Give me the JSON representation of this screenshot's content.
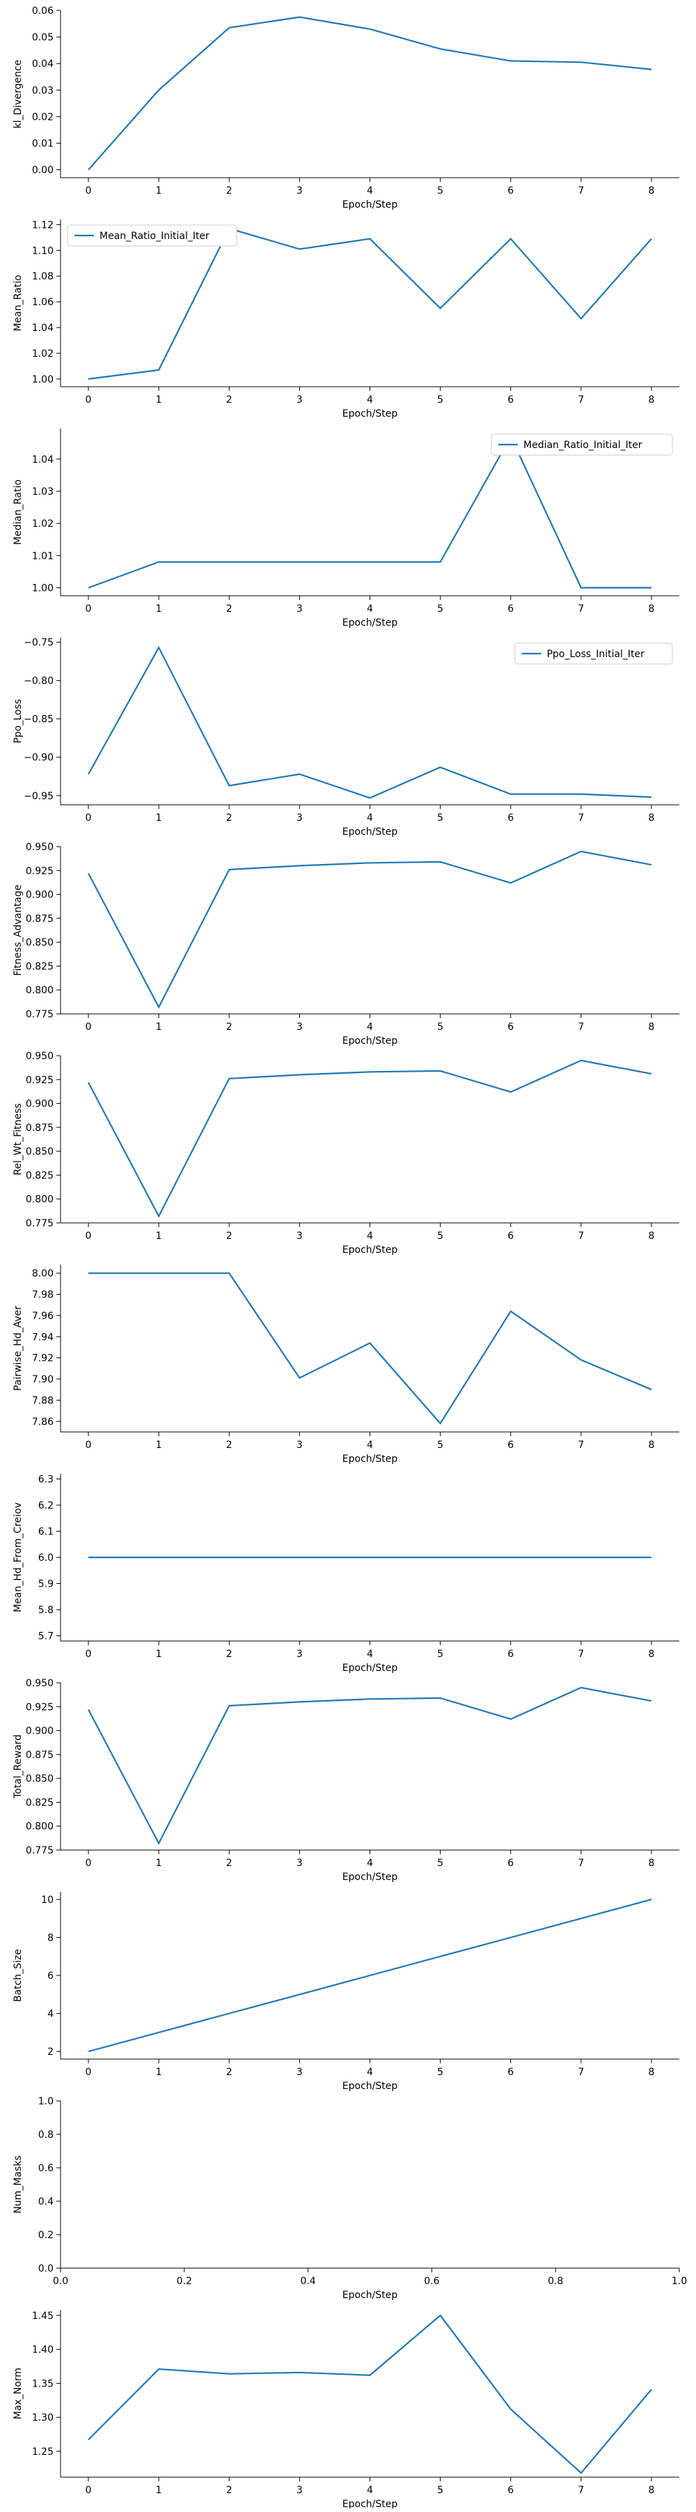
{
  "chart_data": [
    {
      "type": "line",
      "xlabel": "Epoch/Step",
      "ylabel": "kl_Divergence",
      "x": [
        0,
        1,
        2,
        3,
        4,
        5,
        6,
        7,
        8
      ],
      "series": [
        {
          "values": [
            0.0,
            0.03,
            0.0535,
            0.0575,
            0.053,
            0.0455,
            0.041,
            0.0405,
            0.0378
          ]
        }
      ],
      "ylim": [
        -0.003,
        0.06
      ],
      "yticks": [
        0.0,
        0.01,
        0.02,
        0.03,
        0.04,
        0.05,
        0.06
      ],
      "ytick_labels": [
        "0.00",
        "0.01",
        "0.02",
        "0.03",
        "0.04",
        "0.05",
        "0.06"
      ],
      "xticks": [
        0,
        1,
        2,
        3,
        4,
        5,
        6,
        7,
        8
      ],
      "xtick_labels": [
        "0",
        "1",
        "2",
        "3",
        "4",
        "5",
        "6",
        "7",
        "8"
      ],
      "legend": null
    },
    {
      "type": "line",
      "xlabel": "Epoch/Step",
      "ylabel": "Mean_Ratio",
      "x": [
        0,
        1,
        2,
        3,
        4,
        5,
        6,
        7,
        8
      ],
      "series": [
        {
          "name": "Mean_Ratio_Initial_Iter",
          "values": [
            1.0,
            1.007,
            1.117,
            1.101,
            1.109,
            1.055,
            1.109,
            1.047,
            1.109
          ]
        }
      ],
      "ylim": [
        0.994,
        1.124
      ],
      "yticks": [
        1.0,
        1.02,
        1.04,
        1.06,
        1.08,
        1.1,
        1.12
      ],
      "ytick_labels": [
        "1.00",
        "1.02",
        "1.04",
        "1.06",
        "1.08",
        "1.10",
        "1.12"
      ],
      "xticks": [
        0,
        1,
        2,
        3,
        4,
        5,
        6,
        7,
        8
      ],
      "xtick_labels": [
        "0",
        "1",
        "2",
        "3",
        "4",
        "5",
        "6",
        "7",
        "8"
      ],
      "legend": "upper-left"
    },
    {
      "type": "line",
      "xlabel": "Epoch/Step",
      "ylabel": "Median_Ratio",
      "x": [
        0,
        1,
        2,
        3,
        4,
        5,
        6,
        7,
        8
      ],
      "series": [
        {
          "name": "Median_Ratio_Initial_Iter",
          "values": [
            1.0,
            1.008,
            1.008,
            1.008,
            1.008,
            1.008,
            1.047,
            1.0,
            1.0
          ]
        }
      ],
      "ylim": [
        0.9975,
        1.0495
      ],
      "yticks": [
        1.0,
        1.01,
        1.02,
        1.03,
        1.04
      ],
      "ytick_labels": [
        "1.00",
        "1.01",
        "1.02",
        "1.03",
        "1.04"
      ],
      "xticks": [
        0,
        1,
        2,
        3,
        4,
        5,
        6,
        7,
        8
      ],
      "xtick_labels": [
        "0",
        "1",
        "2",
        "3",
        "4",
        "5",
        "6",
        "7",
        "8"
      ],
      "legend": "upper-right"
    },
    {
      "type": "line",
      "xlabel": "Epoch/Step",
      "ylabel": "Ppo_Loss",
      "x": [
        0,
        1,
        2,
        3,
        4,
        5,
        6,
        7,
        8
      ],
      "series": [
        {
          "name": "Ppo_Loss_Initial_Iter",
          "values": [
            -0.922,
            -0.757,
            -0.937,
            -0.922,
            -0.953,
            -0.913,
            -0.948,
            -0.948,
            -0.952
          ]
        }
      ],
      "ylim": [
        -0.962,
        -0.744
      ],
      "yticks": [
        -0.95,
        -0.9,
        -0.85,
        -0.8,
        -0.75
      ],
      "ytick_labels": [
        "−0.95",
        "−0.90",
        "−0.85",
        "−0.80",
        "−0.75"
      ],
      "xticks": [
        0,
        1,
        2,
        3,
        4,
        5,
        6,
        7,
        8
      ],
      "xtick_labels": [
        "0",
        "1",
        "2",
        "3",
        "4",
        "5",
        "6",
        "7",
        "8"
      ],
      "legend": "upper-right"
    },
    {
      "type": "line",
      "xlabel": "Epoch/Step",
      "ylabel": "Fitness_Advantage",
      "x": [
        0,
        1,
        2,
        3,
        4,
        5,
        6,
        7,
        8
      ],
      "series": [
        {
          "values": [
            0.922,
            0.782,
            0.926,
            0.93,
            0.933,
            0.934,
            0.912,
            0.945,
            0.931
          ]
        }
      ],
      "ylim": [
        0.775,
        0.95
      ],
      "yticks": [
        0.775,
        0.8,
        0.825,
        0.85,
        0.875,
        0.9,
        0.925,
        0.95
      ],
      "ytick_labels": [
        "0.775",
        "0.800",
        "0.825",
        "0.850",
        "0.875",
        "0.900",
        "0.925",
        "0.950"
      ],
      "xticks": [
        0,
        1,
        2,
        3,
        4,
        5,
        6,
        7,
        8
      ],
      "xtick_labels": [
        "0",
        "1",
        "2",
        "3",
        "4",
        "5",
        "6",
        "7",
        "8"
      ],
      "legend": null
    },
    {
      "type": "line",
      "xlabel": "Epoch/Step",
      "ylabel": "Rel_Wt_Fitness",
      "x": [
        0,
        1,
        2,
        3,
        4,
        5,
        6,
        7,
        8
      ],
      "series": [
        {
          "values": [
            0.922,
            0.782,
            0.926,
            0.93,
            0.933,
            0.934,
            0.912,
            0.945,
            0.931
          ]
        }
      ],
      "ylim": [
        0.775,
        0.95
      ],
      "yticks": [
        0.775,
        0.8,
        0.825,
        0.85,
        0.875,
        0.9,
        0.925,
        0.95
      ],
      "ytick_labels": [
        "0.775",
        "0.800",
        "0.825",
        "0.850",
        "0.875",
        "0.900",
        "0.925",
        "0.950"
      ],
      "xticks": [
        0,
        1,
        2,
        3,
        4,
        5,
        6,
        7,
        8
      ],
      "xtick_labels": [
        "0",
        "1",
        "2",
        "3",
        "4",
        "5",
        "6",
        "7",
        "8"
      ],
      "legend": null
    },
    {
      "type": "line",
      "xlabel": "Epoch/Step",
      "ylabel": "Pairwise_Hd_Aver",
      "x": [
        0,
        1,
        2,
        3,
        4,
        5,
        6,
        7,
        8
      ],
      "series": [
        {
          "values": [
            8.0,
            8.0,
            8.0,
            7.901,
            7.934,
            7.858,
            7.964,
            7.918,
            7.89
          ]
        }
      ],
      "ylim": [
        7.85,
        8.008
      ],
      "yticks": [
        7.86,
        7.88,
        7.9,
        7.92,
        7.94,
        7.96,
        7.98,
        8.0
      ],
      "ytick_labels": [
        "7.86",
        "7.88",
        "7.90",
        "7.92",
        "7.94",
        "7.96",
        "7.98",
        "8.00"
      ],
      "xticks": [
        0,
        1,
        2,
        3,
        4,
        5,
        6,
        7,
        8
      ],
      "xtick_labels": [
        "0",
        "1",
        "2",
        "3",
        "4",
        "5",
        "6",
        "7",
        "8"
      ],
      "legend": null
    },
    {
      "type": "line",
      "xlabel": "Epoch/Step",
      "ylabel": "Mean_Hd_From_Creiov",
      "x": [
        0,
        1,
        2,
        3,
        4,
        5,
        6,
        7,
        8
      ],
      "series": [
        {
          "values": [
            6.0,
            6.0,
            6.0,
            6.0,
            6.0,
            6.0,
            6.0,
            6.0,
            6.0
          ]
        }
      ],
      "ylim": [
        5.68,
        6.32
      ],
      "yticks": [
        5.7,
        5.8,
        5.9,
        6.0,
        6.1,
        6.2,
        6.3
      ],
      "ytick_labels": [
        "5.7",
        "5.8",
        "5.9",
        "6.0",
        "6.1",
        "6.2",
        "6.3"
      ],
      "xticks": [
        0,
        1,
        2,
        3,
        4,
        5,
        6,
        7,
        8
      ],
      "xtick_labels": [
        "0",
        "1",
        "2",
        "3",
        "4",
        "5",
        "6",
        "7",
        "8"
      ],
      "legend": null
    },
    {
      "type": "line",
      "xlabel": "Epoch/Step",
      "ylabel": "Total_Reward",
      "x": [
        0,
        1,
        2,
        3,
        4,
        5,
        6,
        7,
        8
      ],
      "series": [
        {
          "values": [
            0.922,
            0.782,
            0.926,
            0.93,
            0.933,
            0.934,
            0.912,
            0.945,
            0.931
          ]
        }
      ],
      "ylim": [
        0.775,
        0.95
      ],
      "yticks": [
        0.775,
        0.8,
        0.825,
        0.85,
        0.875,
        0.9,
        0.925,
        0.95
      ],
      "ytick_labels": [
        "0.775",
        "0.800",
        "0.825",
        "0.850",
        "0.875",
        "0.900",
        "0.925",
        "0.950"
      ],
      "xticks": [
        0,
        1,
        2,
        3,
        4,
        5,
        6,
        7,
        8
      ],
      "xtick_labels": [
        "0",
        "1",
        "2",
        "3",
        "4",
        "5",
        "6",
        "7",
        "8"
      ],
      "legend": null
    },
    {
      "type": "line",
      "xlabel": "Epoch/Step",
      "ylabel": "Batch_Size",
      "x": [
        0,
        1,
        2,
        3,
        4,
        5,
        6,
        7,
        8
      ],
      "series": [
        {
          "values": [
            2,
            3,
            4,
            5,
            6,
            7,
            8,
            9,
            10
          ]
        }
      ],
      "ylim": [
        1.6,
        10.4
      ],
      "yticks": [
        2,
        4,
        6,
        8,
        10
      ],
      "ytick_labels": [
        "2",
        "4",
        "6",
        "8",
        "10"
      ],
      "xticks": [
        0,
        1,
        2,
        3,
        4,
        5,
        6,
        7,
        8
      ],
      "xtick_labels": [
        "0",
        "1",
        "2",
        "3",
        "4",
        "5",
        "6",
        "7",
        "8"
      ],
      "legend": null
    },
    {
      "type": "line",
      "xlabel": "Epoch/Step",
      "ylabel": "Num_Masks",
      "x": [],
      "series": [],
      "xlim": [
        0.0,
        1.0
      ],
      "ylim": [
        0.0,
        1.0
      ],
      "yticks": [
        0.0,
        0.2,
        0.4,
        0.6,
        0.8,
        1.0
      ],
      "ytick_labels": [
        "0.0",
        "0.2",
        "0.4",
        "0.6",
        "0.8",
        "1.0"
      ],
      "xticks": [
        0.0,
        0.2,
        0.4,
        0.6,
        0.8,
        1.0
      ],
      "xtick_labels": [
        "0.0",
        "0.2",
        "0.4",
        "0.6",
        "0.8",
        "1.0"
      ],
      "legend": null
    },
    {
      "type": "line",
      "xlabel": "Epoch/Step",
      "ylabel": "Max_Norm",
      "x": [
        0,
        1,
        2,
        3,
        4,
        5,
        6,
        7,
        8
      ],
      "series": [
        {
          "values": [
            1.267,
            1.371,
            1.364,
            1.366,
            1.362,
            1.45,
            1.312,
            1.218,
            1.341
          ]
        }
      ],
      "ylim": [
        1.212,
        1.458
      ],
      "yticks": [
        1.25,
        1.3,
        1.35,
        1.4,
        1.45
      ],
      "ytick_labels": [
        "1.25",
        "1.30",
        "1.35",
        "1.40",
        "1.45"
      ],
      "xticks": [
        0,
        1,
        2,
        3,
        4,
        5,
        6,
        7,
        8
      ],
      "xtick_labels": [
        "0",
        "1",
        "2",
        "3",
        "4",
        "5",
        "6",
        "7",
        "8"
      ],
      "legend": null
    }
  ]
}
